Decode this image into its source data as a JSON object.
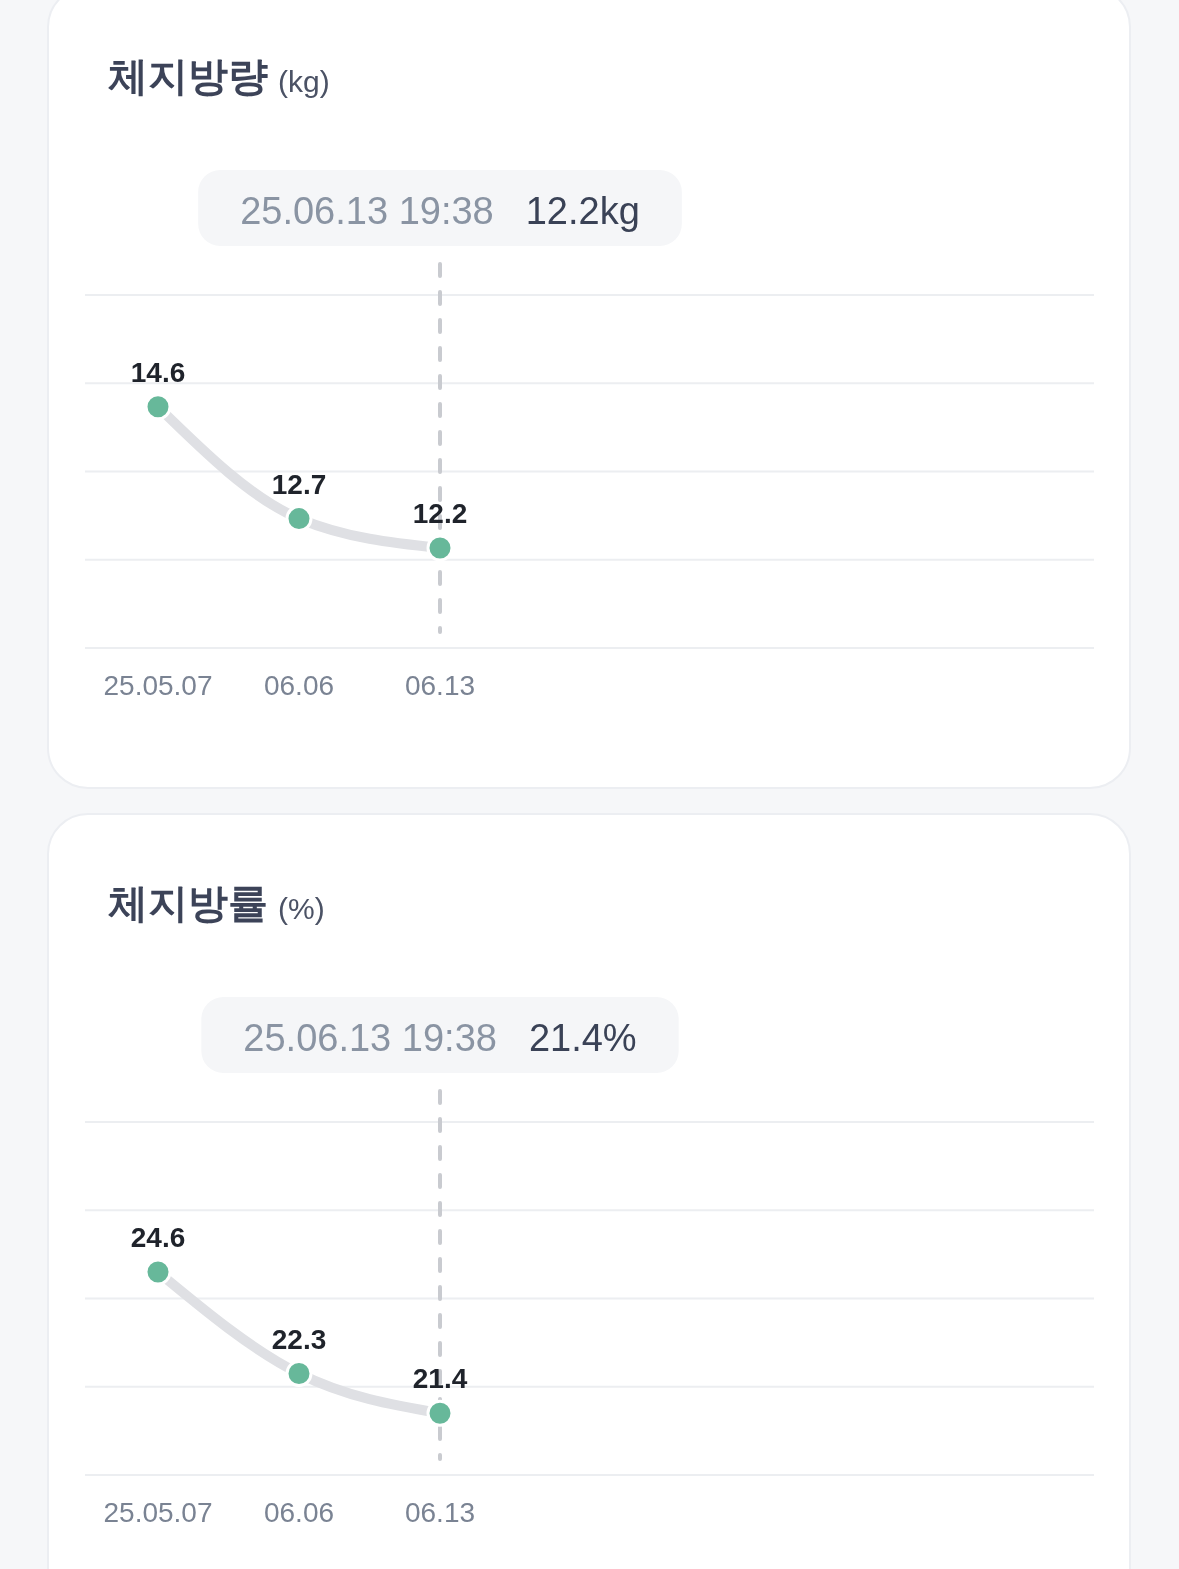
{
  "chart_data": [
    {
      "type": "line",
      "title": "체지방량",
      "subtitle": "(kg)",
      "categories": [
        "25.05.07",
        "06.06",
        "06.13",
        null,
        null,
        null,
        null
      ],
      "series": [
        {
          "color": "#67b89a",
          "values": [
            14.6,
            12.7,
            12.2,
            null,
            null,
            null,
            null
          ]
        }
      ],
      "ylim": [
        10.5,
        16.5
      ],
      "yticks": [
        {
          "value": 10.5,
          "label": null
        },
        {
          "value": 12,
          "label": null
        },
        {
          "value": 13.5,
          "label": null
        },
        {
          "value": 15,
          "label": null
        },
        {
          "value": 16.5,
          "label": null
        }
      ],
      "tick_labels": "x",
      "grid": "y",
      "marker": "circle",
      "line_style": "solid",
      "data_labels": true,
      "ref_lines": [
        {
          "axis": "x",
          "value": "06.13",
          "color": "#c9cbd0",
          "line_style": "dashed"
        }
      ],
      "annotations": [
        "25.06.13 19:38",
        "12.2kg"
      ]
    },
    {
      "type": "line",
      "title": "체지방률",
      "subtitle": "(%)",
      "categories": [
        "25.05.07",
        "06.06",
        "06.13",
        null,
        null,
        null,
        null
      ],
      "series": [
        {
          "color": "#67b89a",
          "values": [
            24.6,
            22.3,
            21.4,
            null,
            null,
            null,
            null
          ]
        }
      ],
      "ylim": [
        20,
        28
      ],
      "yticks": [
        {
          "value": 20,
          "label": null
        },
        {
          "value": 22,
          "label": null
        },
        {
          "value": 24,
          "label": null
        },
        {
          "value": 26,
          "label": null
        },
        {
          "value": 28,
          "label": null
        }
      ],
      "tick_labels": "x",
      "grid": "y",
      "marker": "circle",
      "line_style": "solid",
      "data_labels": true,
      "ref_lines": [
        {
          "axis": "x",
          "value": "06.13",
          "color": "#c9cbd0",
          "line_style": "dashed"
        }
      ],
      "annotations": [
        "25.06.13 19:38",
        "21.4%"
      ]
    }
  ]
}
